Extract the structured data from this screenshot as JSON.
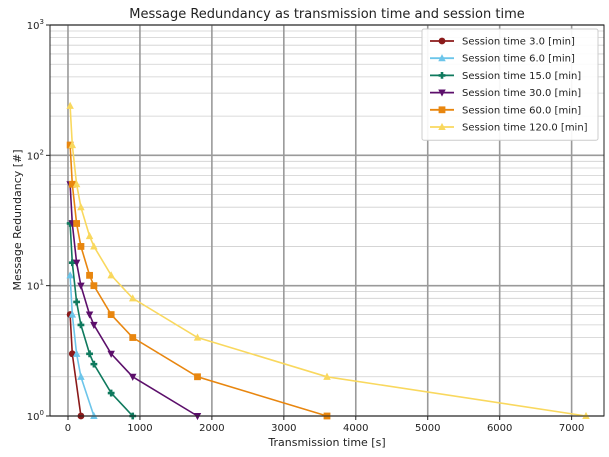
{
  "chart_data": {
    "type": "line",
    "title": "Message Redundancy as transmission time and session time",
    "xlabel": "Transmission time [s]",
    "ylabel": "Message Redundancy [#]",
    "xlim": [
      -250,
      7450
    ],
    "ylim": [
      1,
      1000
    ],
    "yscale": "log",
    "grid": true,
    "legend_position": "top-right",
    "x_ticks": [
      0,
      1000,
      2000,
      3000,
      4000,
      5000,
      6000,
      7000
    ],
    "y_ticks": [
      {
        "value": 1,
        "base": "10",
        "exp": "0"
      },
      {
        "value": 10,
        "base": "10",
        "exp": "1"
      },
      {
        "value": 100,
        "base": "10",
        "exp": "2"
      },
      {
        "value": 1000,
        "base": "10",
        "exp": "3"
      }
    ],
    "series": [
      {
        "name": "Session time 3.0 [min]",
        "color": "#8b1a1a",
        "marker": "circle",
        "x": [
          30,
          60,
          180
        ],
        "y": [
          6,
          3,
          1
        ]
      },
      {
        "name": "Session time 6.0 [min]",
        "color": "#6cc5ea",
        "marker": "triangle-up",
        "x": [
          30,
          60,
          120,
          180,
          360
        ],
        "y": [
          12,
          6,
          3,
          2,
          1
        ]
      },
      {
        "name": "Session time 15.0 [min]",
        "color": "#0f7a5e",
        "marker": "plus",
        "x": [
          30,
          60,
          120,
          180,
          300,
          360,
          600,
          900
        ],
        "y": [
          30,
          15,
          7.5,
          5,
          3,
          2.5,
          1.5,
          1
        ]
      },
      {
        "name": "Session time 30.0 [min]",
        "color": "#5c0f6b",
        "marker": "triangle-down",
        "x": [
          30,
          60,
          120,
          180,
          300,
          360,
          600,
          900,
          1800
        ],
        "y": [
          60,
          30,
          15,
          10,
          6,
          5,
          3,
          2,
          1
        ]
      },
      {
        "name": "Session time 60.0 [min]",
        "color": "#e8860f",
        "marker": "square",
        "x": [
          30,
          60,
          120,
          180,
          300,
          360,
          600,
          900,
          1800,
          3600
        ],
        "y": [
          120,
          60,
          30,
          20,
          12,
          10,
          6,
          4,
          2,
          1
        ]
      },
      {
        "name": "Session time 120.0 [min]",
        "color": "#f9d85e",
        "marker": "triangle-up",
        "x": [
          30,
          60,
          120,
          180,
          300,
          360,
          600,
          900,
          1800,
          3600,
          7200
        ],
        "y": [
          240,
          120,
          60,
          40,
          24,
          20,
          12,
          8,
          4,
          2,
          1
        ]
      }
    ]
  }
}
